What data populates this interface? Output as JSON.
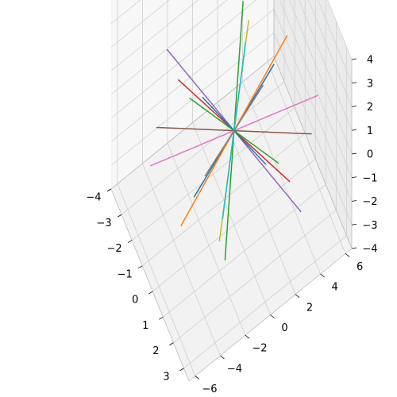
{
  "chart_data": {
    "type": "line3d",
    "title": "",
    "xlabel": "",
    "ylabel": "",
    "zlabel": "",
    "grid": true,
    "xlim": [
      -4,
      3.5
    ],
    "ylim": [
      -6.5,
      6.5
    ],
    "zlim": [
      -4,
      4
    ],
    "x_ticks": [
      "−4",
      "−3",
      "−2",
      "−1",
      "0",
      "1",
      "2",
      "3"
    ],
    "y_ticks": [
      "−6",
      "−4",
      "−2",
      "0",
      "2",
      "4",
      "6"
    ],
    "z_ticks": [
      "−4",
      "−3",
      "−2",
      "−1",
      "0",
      "1",
      "2",
      "3",
      "4"
    ],
    "series": [
      {
        "color": "#1f77b4",
        "start": [
          0.6,
          2.7,
          2.3
        ],
        "end": [
          -0.6,
          -2.7,
          -2.3
        ]
      },
      {
        "color": "#ff7f0e",
        "start": [
          0.9,
          3.5,
          3.5
        ],
        "end": [
          -0.9,
          -3.5,
          -3.5
        ]
      },
      {
        "color": "#2ca02c",
        "start": [
          -1.3,
          1.8,
          3.3
        ],
        "end": [
          1.3,
          -1.8,
          -3.3
        ]
      },
      {
        "color": "#d62728",
        "start": [
          -2.0,
          -2.8,
          1.2
        ],
        "end": [
          2.0,
          2.8,
          -1.2
        ]
      },
      {
        "color": "#9467bd",
        "start": [
          -2.6,
          -3.2,
          2.0
        ],
        "end": [
          2.6,
          3.2,
          -2.0
        ]
      },
      {
        "color": "#8c564b",
        "start": [
          2.3,
          4.3,
          0.5
        ],
        "end": [
          -2.3,
          -4.3,
          -0.5
        ]
      },
      {
        "color": "#e377c2",
        "start": [
          1.8,
          5.2,
          1.2
        ],
        "end": [
          -1.8,
          -5.2,
          -1.2
        ]
      },
      {
        "color": "#7f7f7f",
        "start": [
          0.4,
          2.0,
          1.5
        ],
        "end": [
          -0.4,
          -2.0,
          -1.5
        ]
      },
      {
        "color": "#bcbd22",
        "start": [
          -0.4,
          1.5,
          3.6
        ],
        "end": [
          0.4,
          -1.5,
          -3.6
        ]
      },
      {
        "color": "#17becf",
        "start": [
          -0.1,
          1.0,
          3.2
        ],
        "end": [
          0.1,
          -1.0,
          -3.2
        ]
      },
      {
        "color": "#1f77b4",
        "start": [
          -1.6,
          -1.2,
          0.2
        ],
        "end": [
          1.6,
          1.2,
          -0.2
        ]
      },
      {
        "color": "#2ca02c",
        "start": [
          -1.4,
          -2.4,
          0.9
        ],
        "end": [
          1.4,
          2.4,
          -0.9
        ]
      }
    ]
  }
}
